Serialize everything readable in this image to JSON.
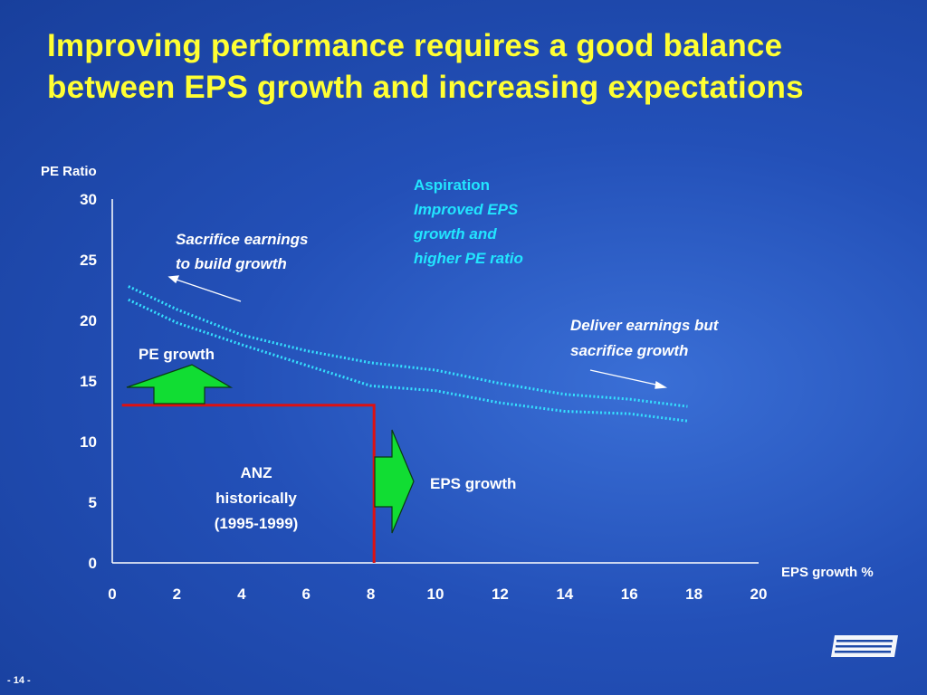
{
  "slide": {
    "title": "Improving performance requires a good balance between EPS growth and increasing expectations",
    "page_label": "- 14 -",
    "logo_text": "ANZ"
  },
  "colors": {
    "title": "#ffff33",
    "axis": "#ffffff",
    "curve": "#35e0ff",
    "anz_line": "#dd1111",
    "arrow_fill": "#11dd33",
    "aspiration": "#22e5ff"
  },
  "chart_data": {
    "type": "line",
    "ylabel": "PE Ratio",
    "xlabel": "EPS growth %",
    "xlim": [
      0,
      20
    ],
    "ylim": [
      0,
      30
    ],
    "x_ticks": [
      "0",
      "2",
      "4",
      "6",
      "8",
      "10",
      "12",
      "14",
      "16",
      "18",
      "20"
    ],
    "y_ticks": [
      "0",
      "5",
      "10",
      "15",
      "20",
      "25",
      "30"
    ],
    "grid": false,
    "series": [
      {
        "style": "dotted",
        "x": [
          0.5,
          2,
          4,
          6,
          8,
          10,
          12,
          14,
          16,
          17.8
        ],
        "y": [
          22.8,
          20.9,
          18.8,
          17.5,
          16.5,
          15.9,
          14.8,
          13.9,
          13.5,
          12.9
        ]
      },
      {
        "style": "dotted",
        "x": [
          0.5,
          2,
          4,
          6,
          8,
          10,
          12,
          14,
          16,
          17.8
        ],
        "y": [
          21.7,
          19.8,
          18.0,
          16.3,
          14.6,
          14.2,
          13.2,
          12.5,
          12.3,
          11.7
        ]
      },
      {
        "style": "solid",
        "x": [
          0.3,
          8.1,
          8.1
        ],
        "y": [
          13,
          13,
          0
        ]
      }
    ],
    "annotations": {
      "aspiration_title": "Aspiration",
      "aspiration_line1": "Improved EPS",
      "aspiration_line2": "growth and",
      "aspiration_line3": "higher PE ratio",
      "sacrifice_line1": "Sacrifice earnings",
      "sacrifice_line2": "to build growth",
      "deliver_line1": "Deliver earnings but",
      "deliver_line2": "sacrifice growth",
      "pe_growth": "PE growth",
      "eps_growth": "EPS growth",
      "anz_line1": "ANZ",
      "anz_line2": "historically",
      "anz_line3": "(1995-1999)"
    }
  }
}
